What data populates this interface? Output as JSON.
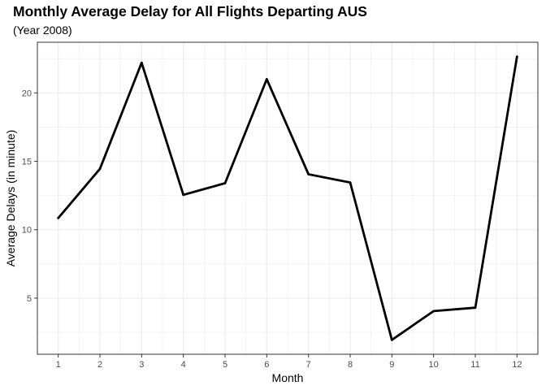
{
  "chart_data": {
    "type": "line",
    "title": "Monthly Average Delay for All Flights Departing AUS",
    "subtitle": "(Year 2008)",
    "xlabel": "Month",
    "ylabel": "Average Delays (in minute)",
    "x": [
      1,
      2,
      3,
      4,
      5,
      6,
      7,
      8,
      9,
      10,
      11,
      12
    ],
    "y": [
      10.85,
      14.45,
      22.2,
      12.55,
      13.4,
      21.0,
      14.05,
      13.45,
      1.95,
      4.05,
      4.3,
      22.65
    ],
    "x_ticks": [
      "1",
      "2",
      "3",
      "4",
      "5",
      "6",
      "7",
      "8",
      "9",
      "10",
      "11",
      "12"
    ],
    "y_ticks": [
      5,
      10,
      15,
      20
    ],
    "xlim": [
      0.5,
      12.5
    ],
    "ylim": [
      0.9,
      23.7
    ],
    "grid": true,
    "line_color": "#000000",
    "grid_color": "#ebebeb",
    "panel_border_color": "#333333"
  }
}
